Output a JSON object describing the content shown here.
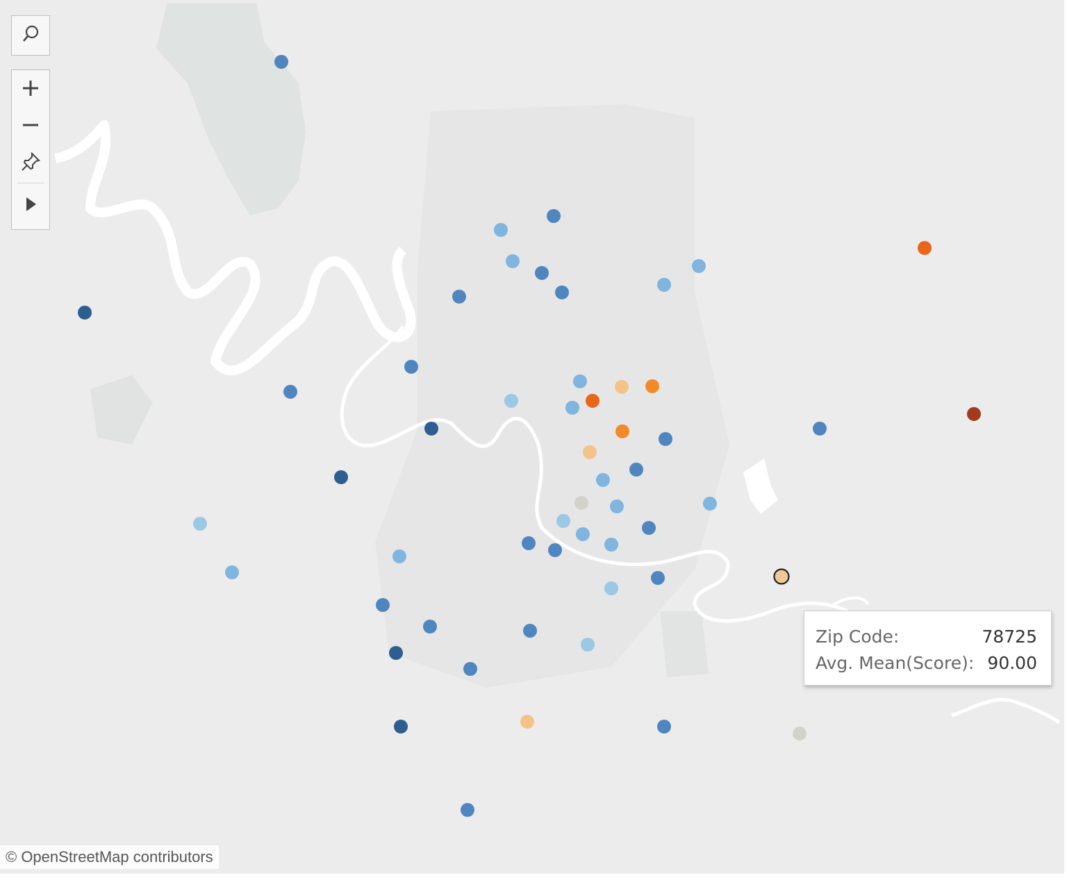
{
  "map": {
    "attribution": "© OpenStreetMap contributors"
  },
  "toolbar": {
    "search_icon": "magnifier-icon",
    "zoom_in_icon": "plus-icon",
    "zoom_out_icon": "minus-icon",
    "pin_icon": "pushpin-icon",
    "expand_icon": "triangle-right-icon"
  },
  "tooltip": {
    "zip_label": "Zip Code:",
    "zip_value": "78725",
    "score_label": "Avg. Mean(Score):",
    "score_value": "90.00"
  },
  "legend_colors": {
    "dark_blue": "#2d5e8f",
    "blue": "#4f86c0",
    "light_blue": "#7fb5df",
    "pale_blue": "#9bc9e5",
    "neutral": "#d2d2c8",
    "light_orange": "#f4c38a",
    "orange": "#f28a2a",
    "dark_orange": "#e8651a",
    "brown": "#a33a1f",
    "highlight": "#f1c896"
  },
  "marks": [
    {
      "color": "blue"
    },
    {
      "color": "dark_blue"
    },
    {
      "color": "light_blue"
    },
    {
      "color": "blue"
    },
    {
      "color": "light_blue"
    },
    {
      "color": "blue"
    },
    {
      "color": "blue"
    },
    {
      "color": "blue"
    },
    {
      "color": "light_blue"
    },
    {
      "color": "light_blue"
    },
    {
      "color": "dark_orange"
    },
    {
      "color": "blue"
    },
    {
      "color": "blue"
    },
    {
      "color": "light_blue"
    },
    {
      "color": "light_orange"
    },
    {
      "color": "orange"
    },
    {
      "color": "dark_orange"
    },
    {
      "color": "light_blue"
    },
    {
      "color": "pale_blue"
    },
    {
      "color": "dark_blue"
    },
    {
      "color": "orange"
    },
    {
      "color": "blue"
    },
    {
      "color": "brown"
    },
    {
      "color": "light_orange"
    },
    {
      "color": "blue"
    },
    {
      "color": "light_blue"
    },
    {
      "color": "neutral"
    },
    {
      "color": "blue"
    },
    {
      "color": "light_blue"
    },
    {
      "color": "light_blue"
    },
    {
      "color": "pale_blue"
    },
    {
      "color": "blue"
    },
    {
      "color": "light_blue"
    },
    {
      "color": "light_blue"
    },
    {
      "color": "blue"
    },
    {
      "color": "light_blue"
    },
    {
      "color": "blue"
    },
    {
      "color": "pale_blue"
    },
    {
      "color": "light_blue"
    },
    {
      "color": "dark_blue"
    },
    {
      "color": "blue"
    },
    {
      "color": "blue"
    },
    {
      "color": "pale_blue"
    },
    {
      "color": "dark_blue"
    },
    {
      "color": "blue"
    },
    {
      "color": "dark_blue"
    },
    {
      "color": "light_orange"
    },
    {
      "color": "blue"
    },
    {
      "color": "neutral"
    },
    {
      "color": "blue"
    },
    {
      "color": "highlight",
      "selected": true
    }
  ]
}
